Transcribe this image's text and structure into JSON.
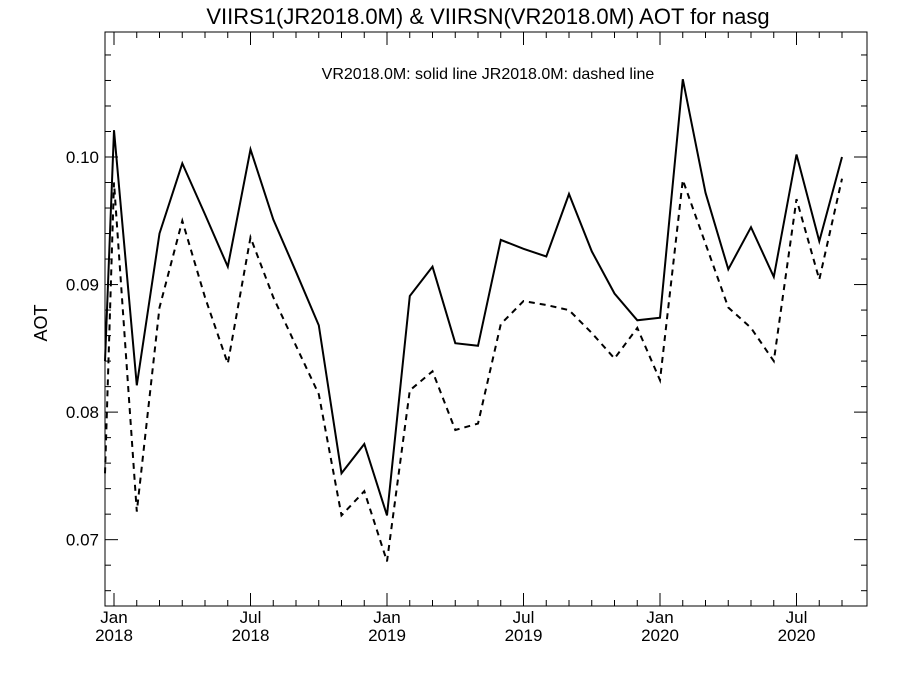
{
  "chart_data": {
    "type": "line",
    "title": "VIIRS1(JR2018.0M) & VIIRSN(VR2018.0M)  AOT for nasg",
    "annotation": "VR2018.0M: solid line   JR2018.0M: dashed line",
    "ylabel": "AOT",
    "xlabel": "",
    "ylim": [
      0.0648,
      0.1098
    ],
    "y_ticks": [
      "0.07",
      "0.08",
      "0.09",
      "0.10"
    ],
    "x_ticks": [
      {
        "month": "Jan",
        "year": "2018"
      },
      {
        "month": "Jul",
        "year": "2018"
      },
      {
        "month": "Jan",
        "year": "2019"
      },
      {
        "month": "Jul",
        "year": "2019"
      },
      {
        "month": "Jan",
        "year": "2020"
      },
      {
        "month": "Jul",
        "year": "2020"
      }
    ],
    "x": [
      "2017-12",
      "2018-01",
      "2018-02",
      "2018-03",
      "2018-04",
      "2018-05",
      "2018-06",
      "2018-07",
      "2018-08",
      "2018-09",
      "2018-10",
      "2018-11",
      "2018-12",
      "2019-01",
      "2019-02",
      "2019-03",
      "2019-04",
      "2019-05",
      "2019-06",
      "2019-07",
      "2019-08",
      "2019-09",
      "2019-10",
      "2019-11",
      "2019-12",
      "2020-01",
      "2020-02",
      "2020-03",
      "2020-04",
      "2020-05",
      "2020-06",
      "2020-07",
      "2020-08",
      "2020-09"
    ],
    "series": [
      {
        "name": "VR2018.0M",
        "style": "solid",
        "values": [
          0.084,
          0.1021,
          0.0821,
          0.094,
          0.0995,
          0.0955,
          0.0914,
          0.1006,
          0.0951,
          0.091,
          0.0868,
          0.0752,
          0.0775,
          0.0719,
          0.0891,
          0.0914,
          0.0854,
          0.0852,
          0.0935,
          0.0928,
          0.0922,
          0.0971,
          0.0926,
          0.0893,
          0.0872,
          0.0874,
          0.1061,
          0.0972,
          0.0912,
          0.0945,
          0.0906,
          0.1002,
          0.0934,
          0.1
        ]
      },
      {
        "name": "JR2018.0M",
        "style": "dashed",
        "values": [
          0.0752,
          0.098,
          0.0722,
          0.0882,
          0.095,
          0.089,
          0.0838,
          0.0937,
          0.089,
          0.0852,
          0.0814,
          0.0719,
          0.0738,
          0.0683,
          0.0817,
          0.0832,
          0.0786,
          0.0791,
          0.0869,
          0.0887,
          0.0884,
          0.088,
          0.0862,
          0.0842,
          0.0866,
          0.0825,
          0.0982,
          0.0932,
          0.0882,
          0.0866,
          0.084,
          0.0967,
          0.0904,
          0.0983
        ]
      }
    ],
    "grid": false,
    "colors": {
      "line": "#000000",
      "background": "#ffffff"
    }
  }
}
